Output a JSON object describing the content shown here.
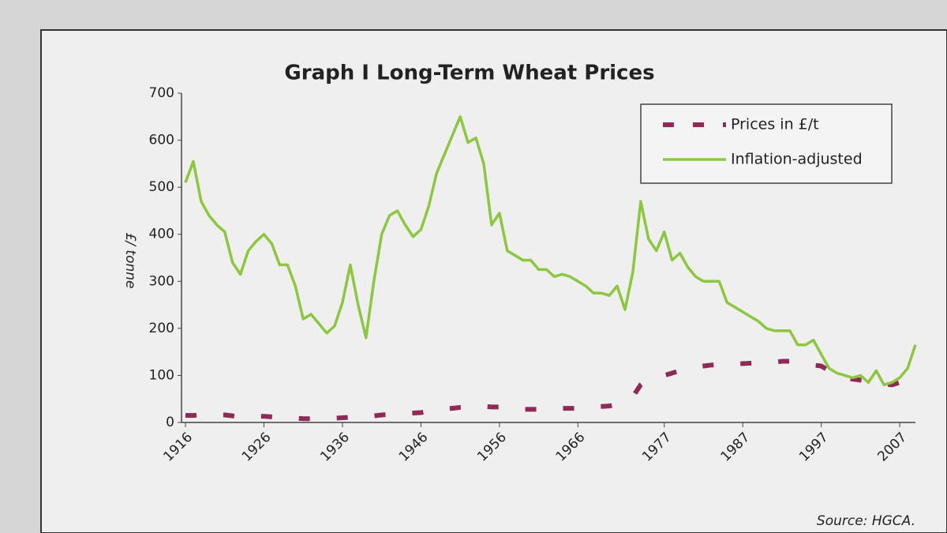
{
  "chart_data": {
    "type": "line",
    "title": "Graph I  Long-Term Wheat Prices",
    "y_label": "£/ tonne",
    "source": "Source: HGCA.",
    "legend": "upper right",
    "x": [
      1916,
      1917,
      1918,
      1919,
      1920,
      1921,
      1922,
      1923,
      1924,
      1925,
      1926,
      1927,
      1928,
      1929,
      1930,
      1931,
      1932,
      1933,
      1934,
      1935,
      1936,
      1937,
      1938,
      1939,
      1940,
      1941,
      1942,
      1943,
      1944,
      1945,
      1946,
      1947,
      1948,
      1949,
      1950,
      1951,
      1952,
      1953,
      1954,
      1955,
      1956,
      1957,
      1958,
      1959,
      1960,
      1961,
      1962,
      1963,
      1964,
      1965,
      1966,
      1967,
      1968,
      1969,
      1970,
      1971,
      1972,
      1973,
      1974,
      1975,
      1976,
      1977,
      1978,
      1979,
      1980,
      1981,
      1982,
      1983,
      1984,
      1985,
      1986,
      1987,
      1988,
      1989,
      1990,
      1991,
      1992,
      1993,
      1994,
      1995,
      1996,
      1997,
      1998,
      1999,
      2000,
      2001,
      2002,
      2003,
      2004,
      2005,
      2006,
      2007,
      2008,
      2009
    ],
    "xlim": [
      1916,
      2009
    ],
    "xticks": [
      1916,
      1926,
      1936,
      1946,
      1956,
      1966,
      1977,
      1987,
      1997,
      2007
    ],
    "ylim": [
      0,
      700
    ],
    "yticks": [
      0,
      100,
      200,
      300,
      400,
      500,
      600,
      700
    ],
    "series": [
      {
        "name": "Prices in £/t",
        "color": "#8e2a55",
        "dashed": true,
        "values": [
          15,
          15,
          16,
          17,
          17,
          16,
          14,
          12,
          12,
          13,
          13,
          12,
          11,
          10,
          9,
          8,
          8,
          8,
          8,
          9,
          10,
          11,
          12,
          12,
          14,
          16,
          17,
          18,
          19,
          20,
          21,
          24,
          28,
          30,
          30,
          32,
          33,
          35,
          34,
          33,
          33,
          31,
          29,
          28,
          28,
          28,
          29,
          30,
          30,
          30,
          30,
          31,
          33,
          34,
          35,
          38,
          45,
          55,
          80,
          92,
          95,
          100,
          105,
          110,
          115,
          118,
          120,
          122,
          123,
          124,
          125,
          125,
          126,
          127,
          128,
          128,
          130,
          130,
          128,
          125,
          122,
          120,
          110,
          100,
          95,
          92,
          90,
          88,
          85,
          82,
          80,
          85,
          95,
          110
        ]
      },
      {
        "name": "Inflation-adjusted",
        "color": "#8dc63f",
        "dashed": false,
        "values": [
          510,
          555,
          470,
          440,
          420,
          405,
          340,
          315,
          365,
          385,
          400,
          380,
          335,
          335,
          290,
          220,
          230,
          210,
          190,
          205,
          255,
          335,
          250,
          180,
          300,
          400,
          440,
          450,
          420,
          395,
          410,
          460,
          530,
          570,
          610,
          650,
          595,
          605,
          550,
          420,
          445,
          365,
          355,
          345,
          345,
          325,
          325,
          310,
          315,
          310,
          300,
          290,
          275,
          275,
          270,
          290,
          240,
          320,
          470,
          390,
          365,
          405,
          345,
          360,
          330,
          310,
          300,
          300,
          300,
          255,
          245,
          235,
          225,
          215,
          200,
          195,
          195,
          195,
          165,
          165,
          175,
          145,
          115,
          105,
          100,
          95,
          100,
          85,
          110,
          80,
          85,
          95,
          115,
          165
        ]
      }
    ]
  }
}
